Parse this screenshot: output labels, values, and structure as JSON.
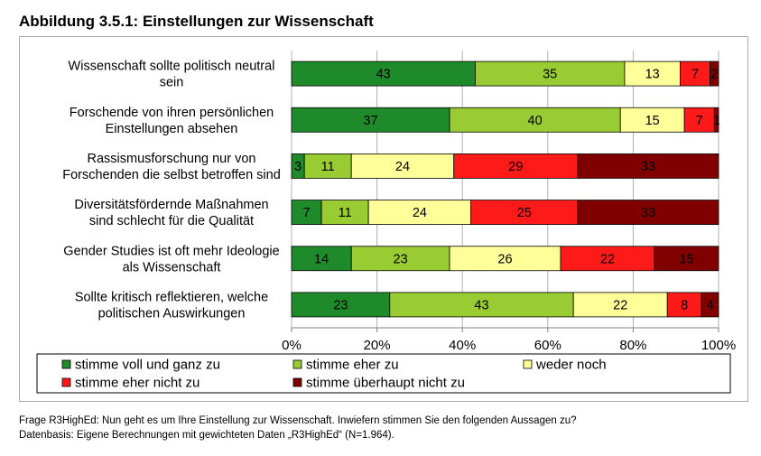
{
  "figure": {
    "title": "Abbildung 3.5.1: Einstellungen zur Wissenschaft"
  },
  "chart_data": {
    "type": "bar",
    "orientation": "horizontal",
    "stacked": true,
    "percent": true,
    "categories": [
      [
        "Wissenschaft sollte politisch neutral",
        "sein"
      ],
      [
        "Forschende von ihren persönlichen",
        "Einstellungen absehen"
      ],
      [
        "Rassismusforschung nur von",
        "Forschenden die selbst betroffen sind"
      ],
      [
        "Diversitätsfördernde Maßnahmen",
        "sind schlecht für die Qualität"
      ],
      [
        "Gender Studies ist oft mehr Ideologie",
        "als Wissenschaft"
      ],
      [
        "Sollte kritisch reflektieren, welche",
        "politischen Auswirkungen"
      ]
    ],
    "series": [
      {
        "name": "stimme voll und ganz zu",
        "color": "#1f8a2a",
        "values": [
          43,
          37,
          3,
          7,
          14,
          23
        ]
      },
      {
        "name": "stimme eher zu",
        "color": "#99cc33",
        "values": [
          35,
          40,
          11,
          11,
          23,
          43
        ]
      },
      {
        "name": "weder noch",
        "color": "#ffff99",
        "values": [
          13,
          15,
          24,
          24,
          26,
          22
        ]
      },
      {
        "name": "stimme eher nicht zu",
        "color": "#ff1a1a",
        "values": [
          7,
          7,
          29,
          25,
          22,
          8
        ]
      },
      {
        "name": "stimme überhaupt nicht zu",
        "color": "#800000",
        "values": [
          2,
          1,
          33,
          33,
          15,
          4
        ]
      }
    ],
    "xlim": [
      0,
      100
    ],
    "xticks": [
      "0%",
      "20%",
      "40%",
      "60%",
      "80%",
      "100%"
    ],
    "grid": true,
    "legend_position": "bottom"
  },
  "notes": {
    "line1": "Frage R3HighEd: Nun geht es um Ihre Einstellung zur Wissenschaft. Inwiefern stimmen Sie den folgenden Aussagen zu?",
    "line2": "Datenbasis: Eigene Berechnungen mit gewichteten Daten „R3HighEd“ (N=1.964)."
  }
}
